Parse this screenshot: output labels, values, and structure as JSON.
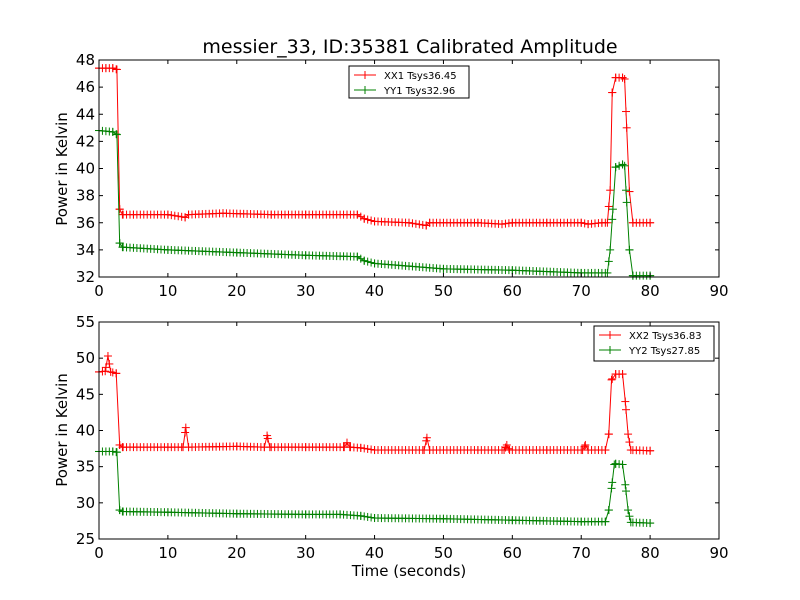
{
  "title": "messier_33, ID:35381 Calibrated Amplitude",
  "chart_data": [
    {
      "type": "line",
      "title": "messier_33, ID:35381 Calibrated Amplitude",
      "xlabel": "",
      "ylabel": "Power in Kelvin",
      "xlim": [
        0,
        90
      ],
      "ylim": [
        32,
        48
      ],
      "xticks": [
        0,
        10,
        20,
        30,
        40,
        50,
        60,
        70,
        80,
        90
      ],
      "yticks": [
        32,
        34,
        36,
        38,
        40,
        42,
        44,
        46,
        48
      ],
      "grid": false,
      "legend_position": "top-center",
      "series": [
        {
          "name": "XX1 Tsys36.45",
          "color": "#ff0000",
          "x": [
            0,
            1,
            2,
            2.6,
            3.0,
            3.4,
            5,
            10,
            12.5,
            13,
            18,
            25,
            30,
            36,
            37.5,
            38.5,
            40,
            45,
            47.5,
            48,
            55,
            58.5,
            60,
            65,
            70,
            71,
            73,
            73.8,
            74.2,
            74.5,
            75,
            76,
            76.3,
            76.6,
            77,
            77.5,
            80
          ],
          "y": [
            47.4,
            47.4,
            47.4,
            47.3,
            37.0,
            36.6,
            36.6,
            36.6,
            36.4,
            36.6,
            36.7,
            36.6,
            36.6,
            36.6,
            36.6,
            36.3,
            36.1,
            36.0,
            35.8,
            36.0,
            36.0,
            35.9,
            36.0,
            36.0,
            36.0,
            35.9,
            36.0,
            36.0,
            38.4,
            45.6,
            46.7,
            46.7,
            46.6,
            43.0,
            38.3,
            36.0,
            36.0
          ]
        },
        {
          "name": "YY1 Tsys32.96",
          "color": "#008000",
          "x": [
            0,
            2,
            2.6,
            3.0,
            3.4,
            10,
            20,
            30,
            37.5,
            38.5,
            40,
            45,
            50,
            60,
            70,
            73.8,
            74.2,
            74.6,
            75,
            76,
            76.3,
            76.6,
            77,
            77.5,
            80
          ],
          "y": [
            42.8,
            42.7,
            42.5,
            34.5,
            34.2,
            34.0,
            33.8,
            33.6,
            33.5,
            33.2,
            33.0,
            32.8,
            32.6,
            32.5,
            32.3,
            32.3,
            34.0,
            37.0,
            40.1,
            40.3,
            40.2,
            37.5,
            34.0,
            32.1,
            32.1
          ]
        }
      ]
    },
    {
      "type": "line",
      "title": "",
      "xlabel": "Time (seconds)",
      "ylabel": "Power in Kelvin",
      "xlim": [
        0,
        90
      ],
      "ylim": [
        25,
        55
      ],
      "xticks": [
        0,
        10,
        20,
        30,
        40,
        50,
        60,
        70,
        80,
        90
      ],
      "yticks": [
        25,
        30,
        35,
        40,
        45,
        50,
        55
      ],
      "grid": false,
      "legend_position": "top-right",
      "series": [
        {
          "name": "XX2 Tsys36.83",
          "color": "#ff0000",
          "x": [
            0,
            0.9,
            1.3,
            1.7,
            2.5,
            3.0,
            3.4,
            10,
            12.2,
            12.6,
            13,
            20,
            24,
            24.4,
            24.8,
            30,
            35.6,
            36,
            36.4,
            38,
            40,
            45,
            47.2,
            47.6,
            48,
            55,
            58.8,
            59.2,
            59.6,
            65,
            70.2,
            70.6,
            71,
            73.5,
            74.0,
            74.4,
            75,
            76,
            76.4,
            76.8,
            77.2,
            80
          ],
          "y": [
            48.1,
            48.2,
            50.3,
            48.1,
            47.9,
            38.0,
            37.7,
            37.7,
            37.7,
            40.4,
            37.7,
            37.8,
            37.7,
            39.3,
            37.7,
            37.7,
            37.7,
            38.3,
            37.7,
            37.6,
            37.3,
            37.3,
            37.3,
            39.0,
            37.3,
            37.3,
            37.3,
            38.0,
            37.3,
            37.3,
            37.3,
            38.0,
            37.3,
            37.3,
            39.5,
            47.0,
            47.8,
            47.8,
            44.0,
            39.5,
            37.3,
            37.2
          ]
        },
        {
          "name": "YY2 Tsys27.85",
          "color": "#008000",
          "x": [
            0,
            2,
            2.6,
            3.0,
            3.4,
            10,
            20,
            30,
            35,
            38,
            40,
            50,
            60,
            70,
            73.5,
            74.0,
            74.4,
            74.8,
            75,
            76,
            76.4,
            76.8,
            77.2,
            80
          ],
          "y": [
            37.1,
            37.1,
            37.0,
            29.0,
            28.8,
            28.7,
            28.5,
            28.4,
            28.4,
            28.2,
            27.9,
            27.8,
            27.6,
            27.4,
            27.4,
            29.0,
            32.0,
            35.3,
            35.4,
            35.3,
            32.5,
            29.0,
            27.3,
            27.2
          ]
        }
      ]
    }
  ]
}
